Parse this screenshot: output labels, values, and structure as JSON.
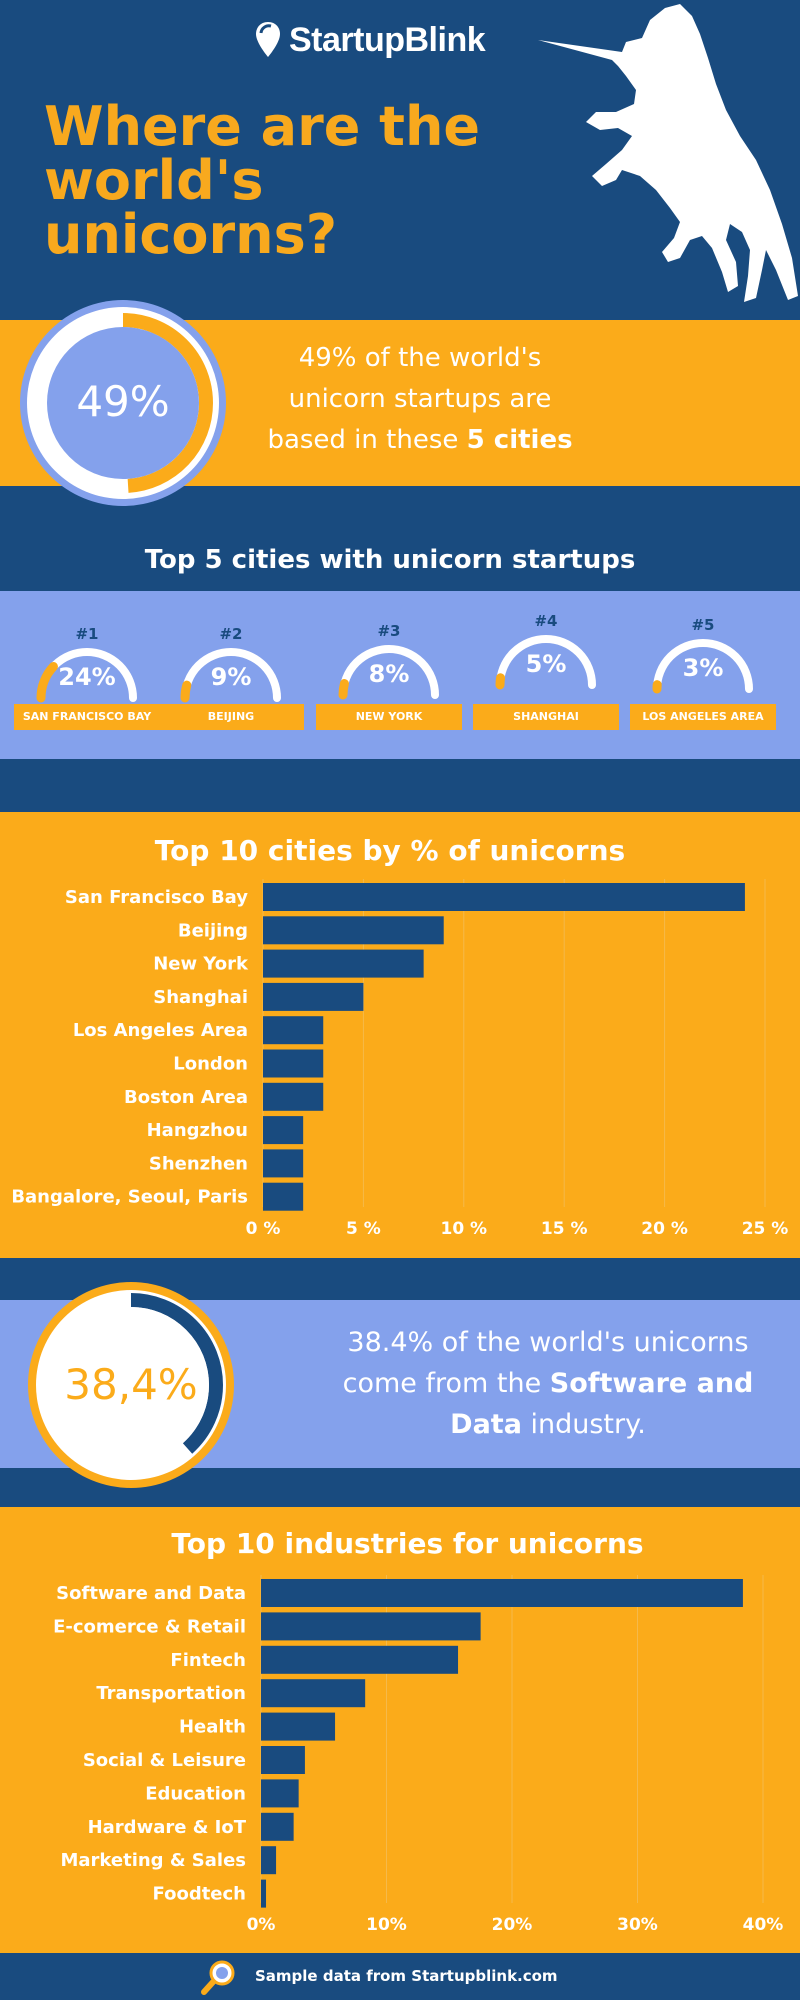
{
  "brand": {
    "name": "StartupBlink"
  },
  "header": {
    "title": "Where are the world's unicorns?"
  },
  "stat1": {
    "ring_value": "49%",
    "fraction": 0.49,
    "text_before": "49% of the world's unicorn startups are based  in these ",
    "text_bold": " 5 cities"
  },
  "top5": {
    "title": "Top 5 cities with unicorn startups",
    "cities": [
      {
        "rank": "#1",
        "pct": "24%",
        "value": 24,
        "name": "SAN FRANCISCO BAY"
      },
      {
        "rank": "#2",
        "pct": "9%",
        "value": 9,
        "name": "BEIJING"
      },
      {
        "rank": "#3",
        "pct": "8%",
        "value": 8,
        "name": "NEW YORK"
      },
      {
        "rank": "#4",
        "pct": "5%",
        "value": 5,
        "name": "SHANGHAI"
      },
      {
        "rank": "#5",
        "pct": "3%",
        "value": 3,
        "name": "LOS ANGELES AREA"
      }
    ]
  },
  "stat2": {
    "ring_value": "38,4%",
    "fraction": 0.384,
    "text_before": "38.4% of the world's unicorns come from the ",
    "text_bold": "Software and Data",
    "text_after": " industry."
  },
  "chart_data": [
    {
      "type": "bar",
      "orientation": "horizontal",
      "title": "Top 10 cities by % of unicorns",
      "categories": [
        "San Francisco Bay",
        "Beijing",
        "New York",
        "Shanghai",
        "Los Angeles Area",
        "London",
        "Boston Area",
        "Hangzhou",
        "Shenzhen",
        "Bangalore, Seoul, Paris"
      ],
      "values": [
        24,
        9,
        8,
        5,
        3,
        3,
        3,
        2,
        2,
        2
      ],
      "xlim": [
        0,
        25
      ],
      "ticks": [
        0,
        5,
        10,
        15,
        20,
        25
      ],
      "tick_labels": [
        "0 %",
        "5 %",
        "10 %",
        "15 %",
        "20 %",
        "25 %"
      ],
      "grid": true
    },
    {
      "type": "bar",
      "orientation": "horizontal",
      "title": "Top 10 industries for unicorns",
      "categories": [
        "Software and Data",
        "E-comerce & Retail",
        "Fintech",
        "Transportation",
        "Health",
        "Social & Leisure",
        "Education",
        "Hardware & IoT ",
        "Marketing & Sales",
        "Foodtech"
      ],
      "values": [
        38.4,
        17.5,
        15.7,
        8.3,
        5.9,
        3.5,
        3.0,
        2.6,
        1.2,
        0.4
      ],
      "xlim": [
        0,
        40
      ],
      "ticks": [
        0,
        10,
        20,
        30,
        40
      ],
      "tick_labels": [
        "0%",
        "10%",
        "20%",
        "30%",
        "40%"
      ],
      "grid": true
    }
  ],
  "footer": {
    "text": "Sample data from Startupblink.com"
  },
  "colors": {
    "navy": "#194b7f",
    "orange": "#fbab1a",
    "periwinkle": "#84a1ec",
    "white": "#ffffff"
  }
}
